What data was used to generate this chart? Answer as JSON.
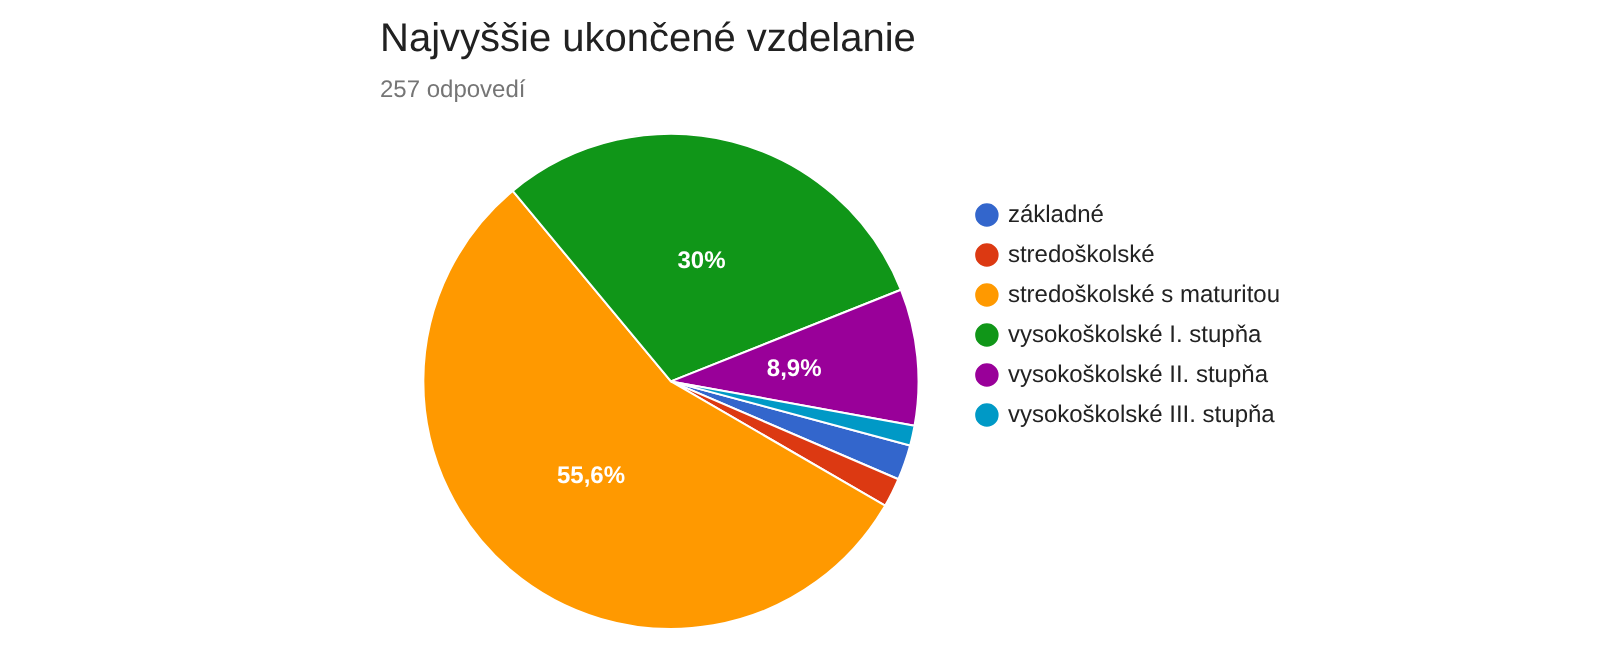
{
  "chart_data": {
    "type": "pie",
    "title": "Najvyššie ukončené vzdelanie",
    "subtitle": "257 odpovedí",
    "categories": [
      "základné",
      "stredoškolské",
      "stredoškolské s maturitou",
      "vysokoškolské I. stupňa",
      "vysokoškolské II. stupňa",
      "vysokoškolské III. stupňa"
    ],
    "values": [
      2.3,
      1.9,
      55.6,
      30,
      8.9,
      1.3
    ],
    "colors": [
      "#3366cc",
      "#dc3912",
      "#ff9900",
      "#109618",
      "#990099",
      "#0099c6"
    ],
    "value_labels": [
      null,
      null,
      "55,6%",
      "30%",
      "8,9%",
      null
    ],
    "legend": "right"
  }
}
